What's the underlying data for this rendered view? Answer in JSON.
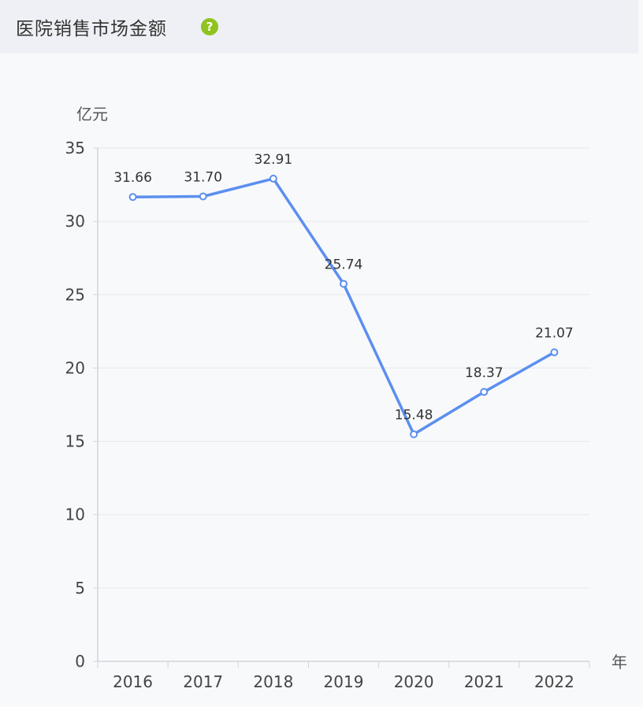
{
  "title": "医院销售市场金额",
  "help_icon": "question-circle-icon",
  "chart_data": {
    "type": "line",
    "categories": [
      "2016",
      "2017",
      "2018",
      "2019",
      "2020",
      "2021",
      "2022"
    ],
    "series": [
      {
        "values": [
          31.66,
          31.7,
          32.91,
          25.74,
          15.48,
          18.37,
          21.07
        ]
      }
    ],
    "value_labels": [
      "31.66",
      "31.70",
      "32.91",
      "25.74",
      "15.48",
      "18.37",
      "21.07"
    ],
    "yticks": [
      "0",
      "5",
      "10",
      "15",
      "20",
      "25",
      "30",
      "35"
    ],
    "ylim": [
      0,
      35
    ],
    "ylabel": "亿元",
    "xlabel": "年",
    "grid": true,
    "line_color": "#5b8ff0",
    "legend": "none"
  }
}
